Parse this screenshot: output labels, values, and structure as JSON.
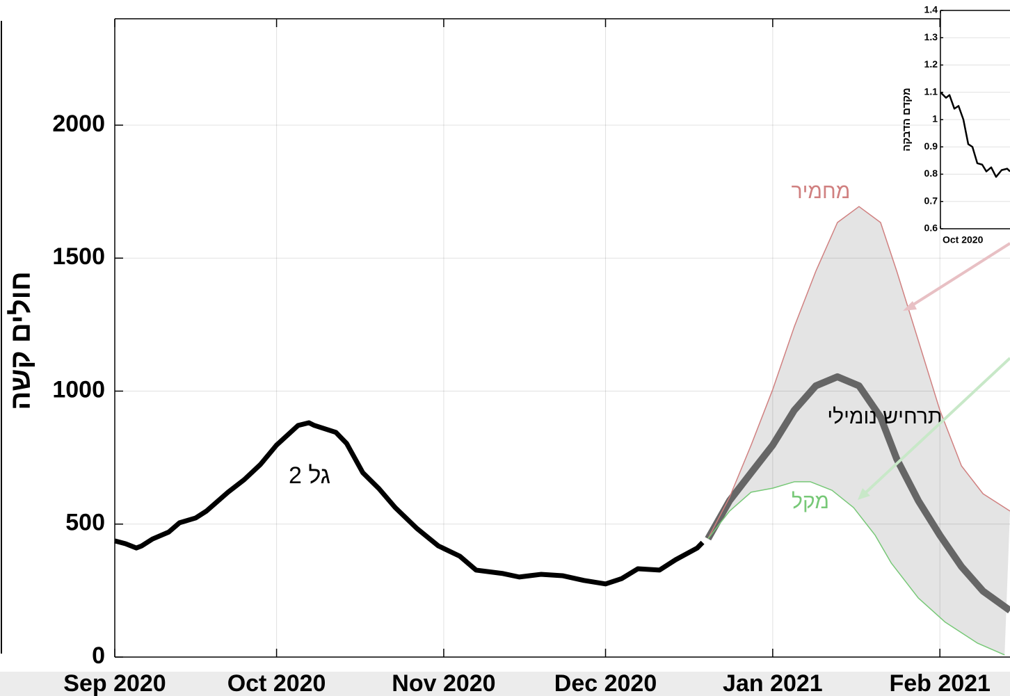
{
  "chart_data": [
    {
      "type": "line",
      "ylabel": "חולים קשה",
      "xlim": [
        0,
        166
      ],
      "ylim": [
        0,
        2400
      ],
      "xticks": [
        {
          "value": 0,
          "label": "Sep 2020"
        },
        {
          "value": 30,
          "label": "Oct 2020"
        },
        {
          "value": 61,
          "label": "Nov 2020"
        },
        {
          "value": 91,
          "label": "Dec 2020"
        },
        {
          "value": 122,
          "label": "Jan 2021"
        },
        {
          "value": 153,
          "label": "Feb 2021"
        }
      ],
      "yticks": [
        0,
        500,
        1000,
        1500,
        2000
      ],
      "grid": true,
      "band_color": "#e4e4e4",
      "series": [
        {
          "name": "גל 2",
          "color": "#000000",
          "x": [
            0,
            2,
            4,
            5,
            7,
            10,
            12,
            15,
            17,
            21,
            24,
            27,
            30,
            34,
            36,
            37,
            41,
            43,
            46,
            49,
            52,
            56,
            60,
            64,
            67,
            72,
            75,
            79,
            83,
            87,
            91,
            94,
            97,
            101,
            104,
            108,
            109
          ],
          "values": [
            437,
            426,
            410,
            418,
            444,
            470,
            505,
            523,
            549,
            620,
            667,
            724,
            797,
            871,
            881,
            871,
            845,
            803,
            693,
            633,
            562,
            484,
            418,
            379,
            327,
            314,
            301,
            311,
            306,
            288,
            275,
            295,
            332,
            327,
            366,
            410,
            431
          ]
        },
        {
          "name": "תרחיש נומילי",
          "color": "#666666",
          "x": [
            110,
            114,
            118,
            122,
            126,
            130,
            134,
            138,
            142,
            145,
            149,
            153,
            157,
            161,
            166
          ],
          "values": [
            445,
            588,
            693,
            797,
            928,
            1020,
            1054,
            1020,
            902,
            745,
            588,
            458,
            340,
            248,
            175
          ]
        },
        {
          "name": "מחמיר",
          "color": "#d08080",
          "x": [
            110,
            114,
            118,
            122,
            126,
            130,
            134,
            138,
            142,
            145,
            149,
            153,
            157,
            161,
            166
          ],
          "values": [
            445,
            601,
            797,
            1006,
            1242,
            1451,
            1634,
            1694,
            1634,
            1451,
            1190,
            928,
            719,
            614,
            549
          ]
        },
        {
          "name": "מקל",
          "color": "#77c877",
          "x": [
            110,
            114,
            118,
            122,
            126,
            129,
            133,
            137,
            141,
            144,
            149,
            154,
            160,
            165
          ],
          "values": [
            445,
            549,
            620,
            635,
            659,
            659,
            627,
            562,
            458,
            353,
            222,
            131,
            52,
            8
          ]
        }
      ]
    },
    {
      "type": "line",
      "ylabel": "מקדם הדבקה",
      "xlim": [
        0,
        25
      ],
      "ylim": [
        0.6,
        1.4
      ],
      "xticks": [
        {
          "value": 0,
          "label": "Oct 2020"
        }
      ],
      "yticks": [
        0.6,
        0.7,
        0.8,
        0.9,
        1,
        1.1,
        1.2,
        1.3,
        1.4
      ],
      "grid": true,
      "series": [
        {
          "color": "#000000",
          "x": [
            0,
            2,
            3.25,
            5,
            6.5,
            8.25,
            10,
            11.5,
            13.25,
            15,
            16.5,
            18.25,
            20,
            22,
            24,
            25
          ],
          "values": [
            1.1,
            1.08,
            1.09,
            1.04,
            1.05,
            1.0,
            0.91,
            0.9,
            0.84,
            0.835,
            0.81,
            0.825,
            0.79,
            0.815,
            0.82,
            0.81
          ]
        }
      ]
    }
  ]
}
